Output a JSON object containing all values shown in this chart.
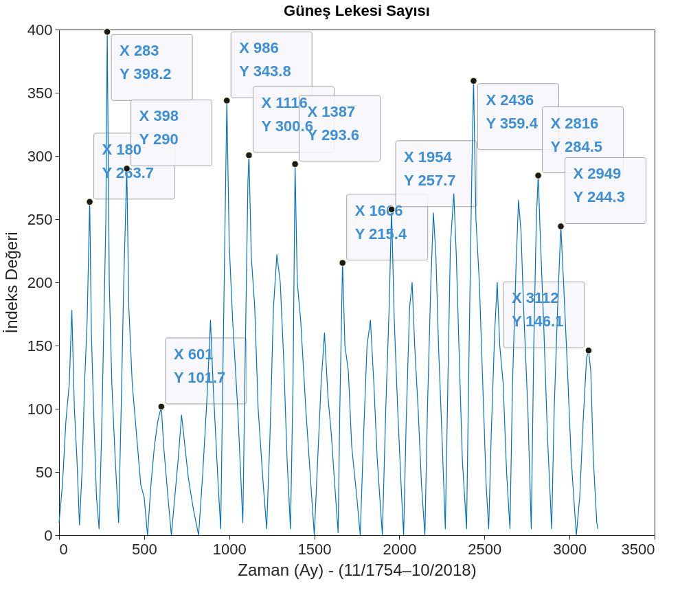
{
  "chart_data": {
    "type": "line",
    "title": "Güneş Lekesi Sayısı",
    "xlabel": "Zaman (Ay) - (11/1754–10/2018)",
    "ylabel": "İndeks Değeri",
    "xlim": [
      0,
      3500
    ],
    "xticks": [
      0,
      500,
      1000,
      1500,
      2000,
      2500,
      3000,
      3500
    ],
    "ylim": [
      0,
      400
    ],
    "yticks": [
      0,
      50,
      100,
      150,
      200,
      250,
      300,
      350,
      400
    ],
    "grid": false,
    "marker": "none",
    "line_style": "solid",
    "series": [
      {
        "color": "#0072bd",
        "x": [
          0,
          20,
          40,
          60,
          75,
          90,
          105,
          120,
          135,
          150,
          165,
          180,
          190,
          205,
          220,
          235,
          250,
          265,
          275,
          283,
          295,
          310,
          330,
          350,
          365,
          380,
          398,
          410,
          430,
          455,
          480,
          500,
          520,
          540,
          560,
          580,
          601,
          615,
          640,
          660,
          680,
          700,
          720,
          740,
          760,
          790,
          820,
          845,
          870,
          890,
          905,
          920,
          935,
          950,
          965,
          986,
          1000,
          1020,
          1050,
          1080,
          1095,
          1110,
          1116,
          1130,
          1150,
          1170,
          1200,
          1220,
          1240,
          1260,
          1280,
          1300,
          1320,
          1340,
          1360,
          1375,
          1387,
          1400,
          1420,
          1450,
          1480,
          1500,
          1520,
          1540,
          1560,
          1580,
          1600,
          1620,
          1640,
          1650,
          1666,
          1680,
          1700,
          1720,
          1750,
          1770,
          1790,
          1810,
          1830,
          1850,
          1870,
          1900,
          1920,
          1940,
          1954,
          1970,
          1990,
          2010,
          2025,
          2040,
          2060,
          2075,
          2090,
          2110,
          2130,
          2150,
          2165,
          2185,
          2200,
          2215,
          2230,
          2250,
          2270,
          2285,
          2300,
          2320,
          2335,
          2350,
          2370,
          2395,
          2410,
          2425,
          2436,
          2450,
          2470,
          2490,
          2510,
          2525,
          2540,
          2560,
          2575,
          2590,
          2610,
          2630,
          2650,
          2665,
          2685,
          2700,
          2715,
          2730,
          2755,
          2775,
          2790,
          2805,
          2816,
          2830,
          2850,
          2870,
          2895,
          2910,
          2930,
          2949,
          2965,
          2985,
          3010,
          3040,
          3060,
          3080,
          3100,
          3112,
          3125,
          3140,
          3160,
          3167
        ],
        "values": [
          10,
          40,
          90,
          120,
          178,
          100,
          60,
          8,
          50,
          120,
          170,
          263.7,
          160,
          90,
          30,
          5,
          80,
          180,
          250,
          398.2,
          200,
          120,
          60,
          10,
          100,
          200,
          290,
          180,
          120,
          80,
          40,
          30,
          0,
          40,
          70,
          90,
          101.7,
          70,
          30,
          0,
          30,
          60,
          95,
          70,
          45,
          20,
          0,
          50,
          110,
          170,
          120,
          80,
          40,
          5,
          150,
          343.8,
          230,
          170,
          100,
          10,
          150,
          280,
          300.6,
          220,
          180,
          100,
          40,
          5,
          80,
          180,
          222,
          200,
          140,
          60,
          5,
          120,
          293.6,
          200,
          170,
          100,
          40,
          0,
          60,
          120,
          160,
          110,
          80,
          40,
          2,
          100,
          215.4,
          150,
          130,
          70,
          30,
          0,
          80,
          150,
          170,
          120,
          60,
          0,
          100,
          180,
          257.7,
          170,
          100,
          40,
          0,
          90,
          180,
          200,
          150,
          100,
          40,
          0,
          100,
          200,
          255,
          220,
          150,
          80,
          5,
          120,
          230,
          270,
          220,
          150,
          60,
          5,
          150,
          280,
          359.4,
          250,
          200,
          120,
          40,
          5,
          80,
          160,
          200,
          150,
          120,
          50,
          5,
          120,
          210,
          265,
          240,
          180,
          100,
          5,
          150,
          250,
          284.5,
          230,
          160,
          80,
          5,
          100,
          180,
          244.3,
          200,
          140,
          60,
          0,
          30,
          90,
          140,
          146.1,
          130,
          60,
          10,
          5
        ]
      }
    ],
    "annotations": [
      {
        "text": "X 180\nY 263.7",
        "x": 180,
        "y": 263.7
      },
      {
        "text": "X 283\nY 398.2",
        "x": 283,
        "y": 398.2
      },
      {
        "text": "X 398\nY 290",
        "x": 398,
        "y": 290
      },
      {
        "text": "X 601\nY 101.7",
        "x": 601,
        "y": 101.7
      },
      {
        "text": "X 986\nY 343.8",
        "x": 986,
        "y": 343.8
      },
      {
        "text": "X 1116\nY 300.6",
        "x": 1116,
        "y": 300.6
      },
      {
        "text": "X 1387\nY 293.6",
        "x": 1387,
        "y": 293.6
      },
      {
        "text": "X 1666\nY 215.4",
        "x": 1666,
        "y": 215.4
      },
      {
        "text": "X 1954\nY 257.7",
        "x": 1954,
        "y": 257.7
      },
      {
        "text": "X 2436\nY 359.4",
        "x": 2436,
        "y": 359.4
      },
      {
        "text": "X 2816\nY 284.5",
        "x": 2816,
        "y": 284.5
      },
      {
        "text": "X 2949\nY 244.3",
        "x": 2949,
        "y": 244.3
      },
      {
        "text": "X 3112\nY 146.1",
        "x": 3112,
        "y": 146.1
      }
    ]
  }
}
